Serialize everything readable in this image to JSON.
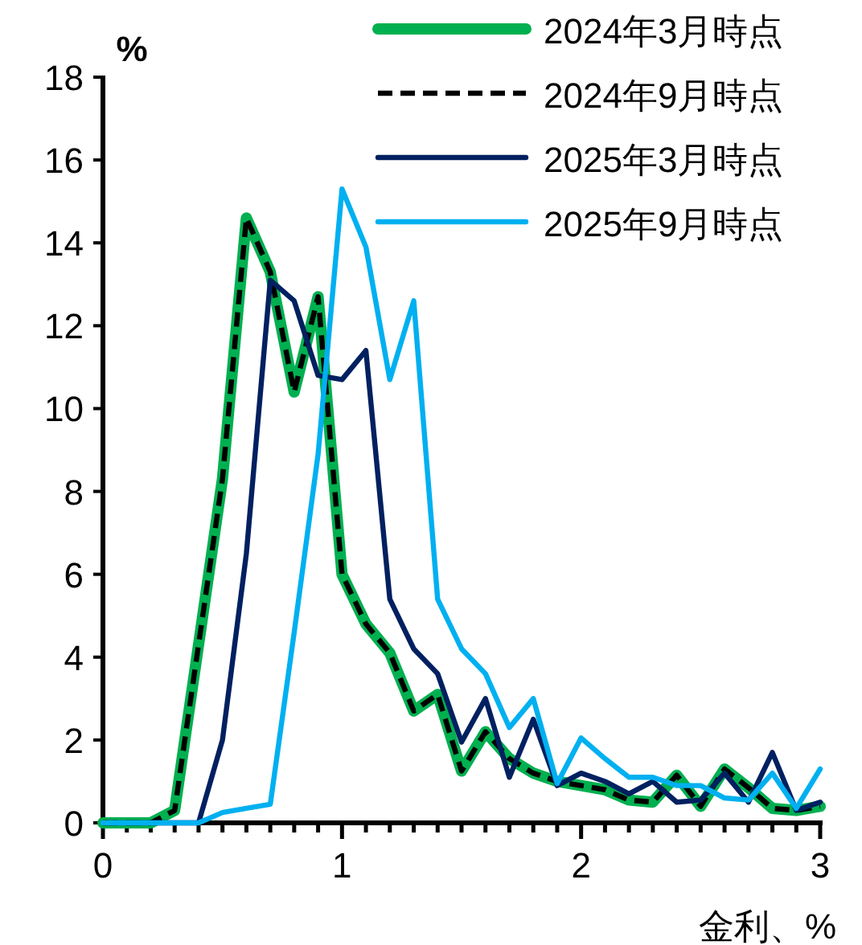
{
  "chart_data": {
    "type": "line",
    "ylabel": "%",
    "xlabel": "金利、%",
    "x": [
      0,
      0.1,
      0.2,
      0.3,
      0.4,
      0.5,
      0.6,
      0.7,
      0.8,
      0.9,
      1.0,
      1.1,
      1.2,
      1.3,
      1.4,
      1.5,
      1.6,
      1.7,
      1.8,
      1.9,
      2.0,
      2.1,
      2.2,
      2.3,
      2.4,
      2.5,
      2.6,
      2.7,
      2.8,
      2.9,
      3.0
    ],
    "series": [
      {
        "name": "2024年3月時点",
        "color": "#00b050",
        "line_style": "solid",
        "values": [
          0,
          0,
          0,
          0.3,
          4.3,
          8.3,
          14.6,
          13.3,
          10.4,
          12.7,
          6.0,
          4.8,
          4.1,
          2.7,
          3.1,
          1.25,
          2.2,
          1.55,
          1.2,
          1.0,
          0.9,
          0.8,
          0.55,
          0.5,
          1.15,
          0.4,
          1.3,
          0.85,
          0.35,
          0.3,
          0.4
        ]
      },
      {
        "name": "2024年9月時点",
        "color": "#000000",
        "line_style": "dashed",
        "values": [
          0,
          0,
          0,
          0.3,
          4.3,
          8.3,
          14.6,
          13.3,
          10.4,
          12.7,
          6.0,
          4.8,
          4.1,
          2.7,
          3.1,
          1.25,
          2.2,
          1.55,
          1.2,
          1.0,
          0.9,
          0.8,
          0.55,
          0.5,
          1.15,
          0.4,
          1.3,
          0.85,
          0.35,
          0.3,
          0.4
        ]
      },
      {
        "name": "2025年3月時点",
        "color": "#002060",
        "line_style": "solid",
        "values": [
          0,
          0,
          0,
          0,
          0,
          2.0,
          6.5,
          13.1,
          12.6,
          10.8,
          10.7,
          11.4,
          5.4,
          4.2,
          3.6,
          1.95,
          3.0,
          1.1,
          2.5,
          0.9,
          1.2,
          1.0,
          0.7,
          1.0,
          0.5,
          0.55,
          1.2,
          0.5,
          1.7,
          0.3,
          0.5
        ]
      },
      {
        "name": "2025年9月時点",
        "color": "#00b0f0",
        "line_style": "solid",
        "values": [
          0,
          0,
          0,
          0,
          0,
          0.25,
          0.35,
          0.45,
          4.6,
          8.9,
          15.3,
          13.9,
          10.7,
          12.6,
          5.4,
          4.2,
          3.6,
          2.3,
          3.0,
          0.95,
          2.05,
          1.55,
          1.1,
          1.1,
          0.9,
          0.9,
          0.6,
          0.55,
          1.2,
          0.35,
          1.3
        ]
      }
    ],
    "xlim": [
      0,
      3
    ],
    "ylim": [
      0,
      18
    ],
    "xticks": [
      0,
      {
        "value": 0.1,
        "label": null
      },
      {
        "value": 0.2,
        "label": null
      },
      {
        "value": 0.3,
        "label": null
      },
      {
        "value": 0.4,
        "label": null
      },
      {
        "value": 0.5,
        "label": null
      },
      {
        "value": 0.6,
        "label": null
      },
      {
        "value": 0.7,
        "label": null
      },
      {
        "value": 0.8,
        "label": null
      },
      {
        "value": 0.9,
        "label": null
      },
      1,
      {
        "value": 1.1,
        "label": null
      },
      {
        "value": 1.2,
        "label": null
      },
      {
        "value": 1.3,
        "label": null
      },
      {
        "value": 1.4,
        "label": null
      },
      {
        "value": 1.5,
        "label": null
      },
      {
        "value": 1.6,
        "label": null
      },
      {
        "value": 1.7,
        "label": null
      },
      {
        "value": 1.8,
        "label": null
      },
      {
        "value": 1.9,
        "label": null
      },
      2,
      {
        "value": 2.1,
        "label": null
      },
      {
        "value": 2.2,
        "label": null
      },
      {
        "value": 2.3,
        "label": null
      },
      {
        "value": 2.4,
        "label": null
      },
      {
        "value": 2.5,
        "label": null
      },
      {
        "value": 2.6,
        "label": null
      },
      {
        "value": 2.7,
        "label": null
      },
      {
        "value": 2.8,
        "label": null
      },
      {
        "value": 2.9,
        "label": null
      },
      3
    ],
    "yticks": [
      0,
      2,
      4,
      6,
      8,
      10,
      12,
      14,
      16,
      18
    ],
    "grid": false,
    "legend": "top right",
    "marker": "none"
  }
}
